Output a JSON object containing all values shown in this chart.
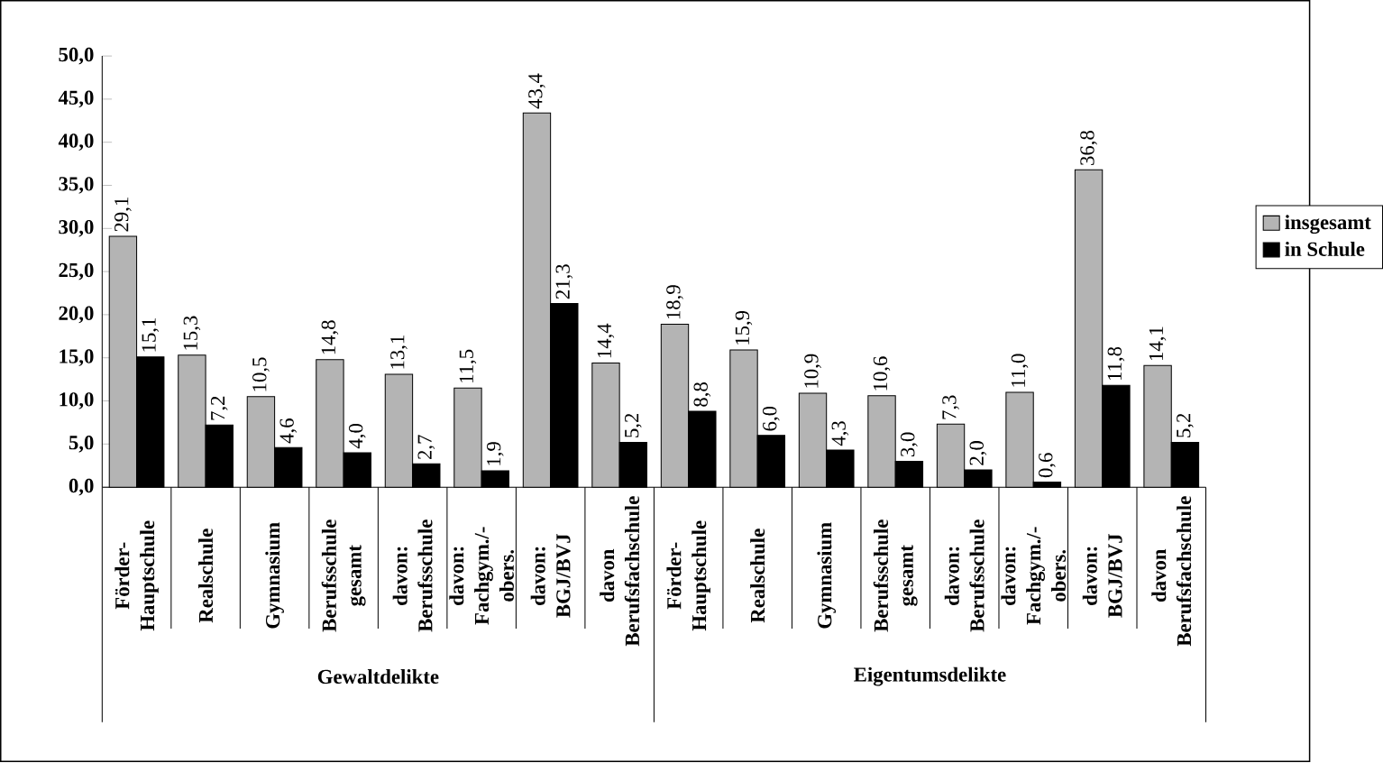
{
  "chart_data": {
    "type": "bar",
    "categories": [
      "Förder- Hauptschule",
      "Realschule",
      "Gymnasium",
      "Berufsschule gesamt",
      "davon: Berufsschule",
      "davon: Fachgym./-obers.",
      "davon: BGJ/BVJ",
      "davon Berufsfachschule",
      "Förder- Hauptschule",
      "Realschule",
      "Gymnasium",
      "Berufsschule gesamt",
      "davon: Berufsschule",
      "davon: Fachgym./-obers.",
      "davon: BGJ/BVJ",
      "davon Berufsfachschule"
    ],
    "series": [
      {
        "name": "insgesamt",
        "color": "#b4b4b4",
        "values": [
          29.1,
          15.3,
          10.5,
          14.8,
          13.1,
          11.5,
          43.4,
          14.4,
          18.9,
          15.9,
          10.9,
          10.6,
          7.3,
          11.0,
          36.8,
          14.1
        ],
        "value_labels": [
          "29,1",
          "15,3",
          "10,5",
          "14,8",
          "13,1",
          "11,5",
          "43,4",
          "14,4",
          "18,9",
          "15,9",
          "10,9",
          "10,6",
          "7,3",
          "11,0",
          "36,8",
          "14,1"
        ]
      },
      {
        "name": "in Schule",
        "color": "#000000",
        "values": [
          15.1,
          7.2,
          4.6,
          4.0,
          2.7,
          1.9,
          21.3,
          5.2,
          8.8,
          6.0,
          4.3,
          3.0,
          2.0,
          0.6,
          11.8,
          5.2
        ],
        "value_labels": [
          "15,1",
          "7,2",
          "4,6",
          "4,0",
          "2,7",
          "1,9",
          "21,3",
          "5,2",
          "8,8",
          "6,0",
          "4,3",
          "3,0",
          "2,0",
          "0,6",
          "11,8",
          "5,2"
        ]
      }
    ],
    "ylim": [
      0,
      50
    ],
    "yticks": [
      {
        "value": 0,
        "label": "0,0"
      },
      {
        "value": 5,
        "label": "5,0"
      },
      {
        "value": 10,
        "label": "10,0"
      },
      {
        "value": 15,
        "label": "15,0"
      },
      {
        "value": 20,
        "label": "20,0"
      },
      {
        "value": 25,
        "label": "25,0"
      },
      {
        "value": 30,
        "label": "30,0"
      },
      {
        "value": 35,
        "label": "35,0"
      },
      {
        "value": 40,
        "label": "40,0"
      },
      {
        "value": 45,
        "label": "45,0"
      },
      {
        "value": 50,
        "label": "50,0"
      }
    ],
    "annotations": [
      "Gewaltdelikte",
      "Eigentumsdelikte"
    ],
    "grid": false,
    "legend": "right"
  }
}
